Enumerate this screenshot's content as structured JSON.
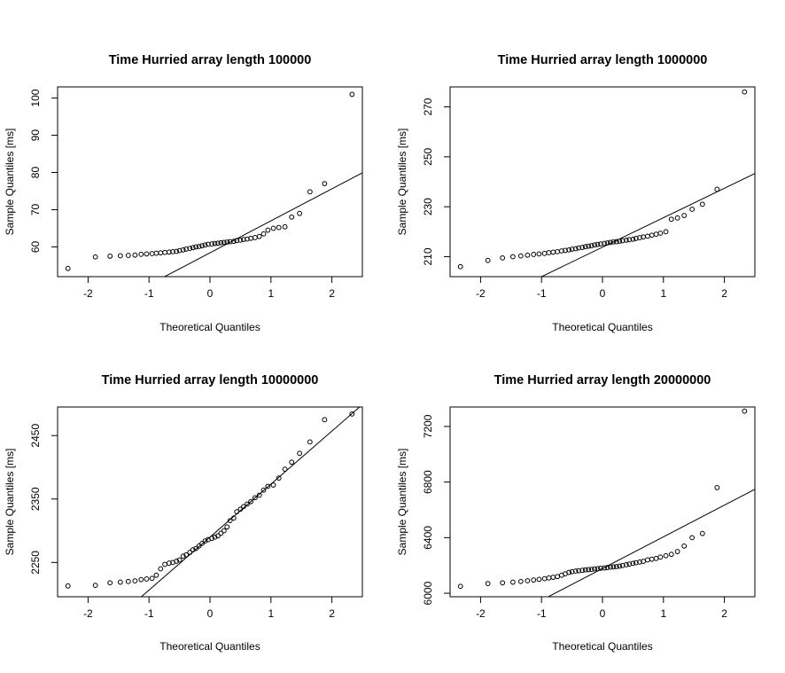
{
  "chart_data": [
    {
      "type": "scatter",
      "title": "Time Hurried array length  100000",
      "xlabel": "Theoretical Quantiles",
      "ylabel": "Sample Quantiles [ms]",
      "xlim": [
        -2.5,
        2.5
      ],
      "ylim": [
        52,
        103
      ],
      "xticks": [
        -2,
        -1,
        0,
        1,
        2
      ],
      "yticks": [
        60,
        70,
        80,
        90,
        100
      ],
      "grid": false,
      "qq_line": {
        "slope": 8.6,
        "intercept": 58.4
      },
      "x": [
        -2.33,
        -1.88,
        -1.64,
        -1.47,
        -1.34,
        -1.23,
        -1.13,
        -1.04,
        -0.95,
        -0.88,
        -0.81,
        -0.74,
        -0.67,
        -0.61,
        -0.55,
        -0.5,
        -0.44,
        -0.39,
        -0.33,
        -0.28,
        -0.23,
        -0.18,
        -0.13,
        -0.08,
        -0.03,
        0.03,
        0.08,
        0.13,
        0.18,
        0.23,
        0.28,
        0.33,
        0.39,
        0.44,
        0.5,
        0.55,
        0.61,
        0.67,
        0.74,
        0.81,
        0.88,
        0.95,
        1.04,
        1.13,
        1.23,
        1.34,
        1.47,
        1.64,
        1.88,
        2.33
      ],
      "y": [
        54.2,
        57.3,
        57.5,
        57.6,
        57.7,
        57.8,
        58.0,
        58.1,
        58.2,
        58.3,
        58.4,
        58.5,
        58.6,
        58.7,
        58.8,
        59.0,
        59.2,
        59.4,
        59.6,
        59.8,
        60.0,
        60.1,
        60.3,
        60.5,
        60.7,
        60.8,
        60.9,
        61.0,
        61.1,
        61.2,
        61.3,
        61.4,
        61.5,
        61.7,
        61.8,
        62.0,
        62.1,
        62.3,
        62.5,
        62.8,
        63.5,
        64.5,
        65.0,
        65.2,
        65.4,
        68.0,
        69.0,
        74.8,
        77.0,
        101.0
      ]
    },
    {
      "type": "scatter",
      "title": "Time Hurried array length  1000000",
      "xlabel": "Theoretical Quantiles",
      "ylabel": "Sample Quantiles [ms]",
      "xlim": [
        -2.5,
        2.5
      ],
      "ylim": [
        202,
        278
      ],
      "xticks": [
        -2,
        -1,
        0,
        1,
        2
      ],
      "yticks": [
        210,
        230,
        250,
        270
      ],
      "grid": false,
      "qq_line": {
        "slope": 11.8,
        "intercept": 213.8
      },
      "x": [
        -2.33,
        -1.88,
        -1.64,
        -1.47,
        -1.34,
        -1.23,
        -1.13,
        -1.04,
        -0.95,
        -0.88,
        -0.81,
        -0.74,
        -0.67,
        -0.61,
        -0.55,
        -0.5,
        -0.44,
        -0.39,
        -0.33,
        -0.28,
        -0.23,
        -0.18,
        -0.13,
        -0.08,
        -0.03,
        0.03,
        0.08,
        0.13,
        0.18,
        0.23,
        0.28,
        0.33,
        0.39,
        0.44,
        0.5,
        0.55,
        0.61,
        0.67,
        0.74,
        0.81,
        0.88,
        0.95,
        1.04,
        1.13,
        1.23,
        1.34,
        1.47,
        1.64,
        1.88,
        2.33
      ],
      "y": [
        206.0,
        208.5,
        209.5,
        210.0,
        210.3,
        210.6,
        210.9,
        211.1,
        211.3,
        211.6,
        211.8,
        212.0,
        212.3,
        212.5,
        212.7,
        213.0,
        213.2,
        213.5,
        213.7,
        214.0,
        214.2,
        214.4,
        214.7,
        214.9,
        215.1,
        215.3,
        215.5,
        215.7,
        215.9,
        216.0,
        216.2,
        216.4,
        216.6,
        216.8,
        217.0,
        217.3,
        217.6,
        217.9,
        218.2,
        218.6,
        219.0,
        219.4,
        220.0,
        225.0,
        225.5,
        226.5,
        229.0,
        231.0,
        237.0,
        276.0
      ]
    },
    {
      "type": "scatter",
      "title": "Time Hurried array length  10000000",
      "xlabel": "Theoretical Quantiles",
      "ylabel": "Sample Quantiles [ms]",
      "xlim": [
        -2.5,
        2.5
      ],
      "ylim": [
        2196,
        2495
      ],
      "xticks": [
        -2,
        -1,
        0,
        1,
        2
      ],
      "yticks": [
        2250,
        2350,
        2450
      ],
      "grid": false,
      "qq_line": {
        "slope": 83.5,
        "intercept": 2290
      },
      "x": [
        -2.33,
        -1.88,
        -1.64,
        -1.47,
        -1.34,
        -1.23,
        -1.13,
        -1.04,
        -0.95,
        -0.88,
        -0.81,
        -0.74,
        -0.67,
        -0.61,
        -0.55,
        -0.5,
        -0.44,
        -0.39,
        -0.33,
        -0.28,
        -0.23,
        -0.18,
        -0.13,
        -0.08,
        -0.03,
        0.03,
        0.08,
        0.13,
        0.18,
        0.23,
        0.28,
        0.33,
        0.39,
        0.44,
        0.5,
        0.55,
        0.61,
        0.67,
        0.74,
        0.81,
        0.88,
        0.95,
        1.04,
        1.13,
        1.23,
        1.34,
        1.47,
        1.64,
        1.88,
        2.33
      ],
      "y": [
        2213,
        2214,
        2218,
        2219,
        2220,
        2221,
        2223,
        2224,
        2225,
        2230,
        2240,
        2247,
        2249,
        2250,
        2252,
        2254,
        2260,
        2262,
        2266,
        2270,
        2272,
        2276,
        2280,
        2284,
        2286,
        2288,
        2290,
        2292,
        2296,
        2300,
        2306,
        2316,
        2320,
        2330,
        2334,
        2338,
        2342,
        2346,
        2352,
        2356,
        2364,
        2370,
        2372,
        2383,
        2397,
        2408,
        2422,
        2440,
        2475,
        2484
      ]
    },
    {
      "type": "scatter",
      "title": "Time Hurried array length  20000000",
      "xlabel": "Theoretical Quantiles",
      "ylabel": "Sample Quantiles [ms]",
      "xlim": [
        -2.5,
        2.5
      ],
      "ylim": [
        5975,
        7340
      ],
      "xticks": [
        -2,
        -1,
        0,
        1,
        2
      ],
      "yticks": [
        6000,
        6400,
        6800,
        7200
      ],
      "grid": false,
      "qq_line": {
        "slope": 228,
        "intercept": 6178
      },
      "x": [
        -2.33,
        -1.88,
        -1.64,
        -1.47,
        -1.34,
        -1.23,
        -1.13,
        -1.04,
        -0.95,
        -0.88,
        -0.81,
        -0.74,
        -0.67,
        -0.61,
        -0.55,
        -0.5,
        -0.44,
        -0.39,
        -0.33,
        -0.28,
        -0.23,
        -0.18,
        -0.13,
        -0.08,
        -0.03,
        0.03,
        0.08,
        0.13,
        0.18,
        0.23,
        0.28,
        0.33,
        0.39,
        0.44,
        0.5,
        0.55,
        0.61,
        0.67,
        0.74,
        0.81,
        0.88,
        0.95,
        1.04,
        1.13,
        1.23,
        1.34,
        1.47,
        1.64,
        1.88,
        2.33
      ],
      "y": [
        6050,
        6070,
        6075,
        6080,
        6085,
        6090,
        6095,
        6100,
        6105,
        6110,
        6115,
        6120,
        6130,
        6140,
        6150,
        6155,
        6160,
        6162,
        6165,
        6168,
        6170,
        6172,
        6175,
        6177,
        6180,
        6182,
        6185,
        6188,
        6190,
        6192,
        6195,
        6200,
        6205,
        6210,
        6215,
        6220,
        6225,
        6230,
        6240,
        6245,
        6250,
        6260,
        6270,
        6280,
        6300,
        6340,
        6400,
        6430,
        6760,
        7310
      ]
    }
  ]
}
